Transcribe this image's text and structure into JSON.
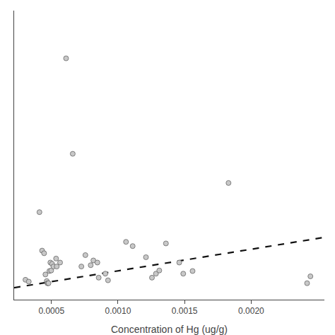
{
  "chart_data": {
    "type": "scatter",
    "xlabel": "Concentration of Hg (ug/g)",
    "series": [
      {
        "type": "scatter",
        "color": "#c8c8c8",
        "marker": "circle",
        "x": [
          0.000305,
          0.00033,
          0.00041,
          0.00043,
          0.000445,
          0.000455,
          0.000465,
          0.00047,
          0.000475,
          0.000478,
          0.000485,
          0.000492,
          0.000498,
          0.000505,
          0.000515,
          0.000535,
          0.00054,
          0.000565,
          0.00061,
          0.00066,
          0.000725,
          0.000755,
          0.000795,
          0.000815,
          0.000845,
          0.000855,
          0.000905,
          0.000925,
          0.00106,
          0.00111,
          0.00121,
          0.001255,
          0.001285,
          0.00131,
          0.00136,
          0.00146,
          0.00149,
          0.00156,
          0.00183,
          0.00242,
          0.002445
        ],
        "values": [
          0.035,
          0.028,
          0.29,
          0.145,
          0.135,
          0.055,
          0.03,
          0.022,
          0.022,
          0.022,
          0.068,
          0.1,
          0.07,
          0.095,
          0.085,
          0.115,
          0.085,
          0.1,
          0.87,
          0.51,
          0.085,
          0.128,
          0.09,
          0.108,
          0.1,
          0.043,
          0.058,
          0.033,
          0.178,
          0.162,
          0.12,
          0.043,
          0.058,
          0.07,
          0.172,
          0.1,
          0.058,
          0.068,
          0.4,
          0.022,
          0.048
        ]
      },
      {
        "type": "line",
        "color": "#111111",
        "line_style": "dashed",
        "x": [
          0.00022,
          0.00255
        ],
        "values": [
          0.005,
          0.195
        ]
      }
    ],
    "xlim": [
      0.00022,
      0.00255
    ],
    "ylim": [
      -0.04,
      1.05
    ],
    "xticks": [
      0.0005,
      {
        "value": 0.001,
        "label": "0.0010"
      },
      0.0015,
      {
        "value": 0.002,
        "label": "0.0020"
      }
    ],
    "tick_labels": "x",
    "grid": false
  }
}
